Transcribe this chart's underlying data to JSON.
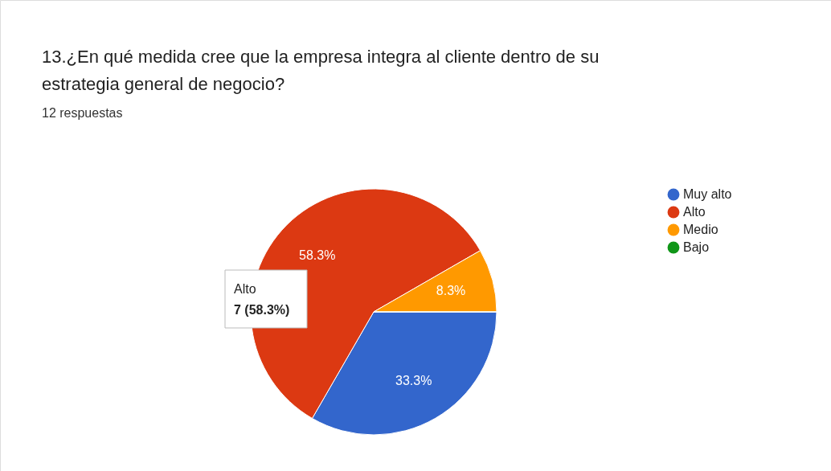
{
  "chart_data": {
    "type": "pie",
    "title": "13.¿En qué medida cree que la empresa integra al cliente dentro de su estrategia general de negocio?",
    "subtitle": "12 respuestas",
    "categories": [
      "Muy alto",
      "Alto",
      "Medio",
      "Bajo"
    ],
    "values": [
      33.3,
      58.3,
      8.3,
      0
    ],
    "colors": [
      "#3366cc",
      "#dc3912",
      "#ff9900",
      "#109618"
    ],
    "value_labels": [
      "33.3%",
      "58.3%",
      "8.3%",
      null
    ],
    "annotations": [
      "Alto",
      "7 (58.3%)"
    ],
    "legend": "right"
  }
}
